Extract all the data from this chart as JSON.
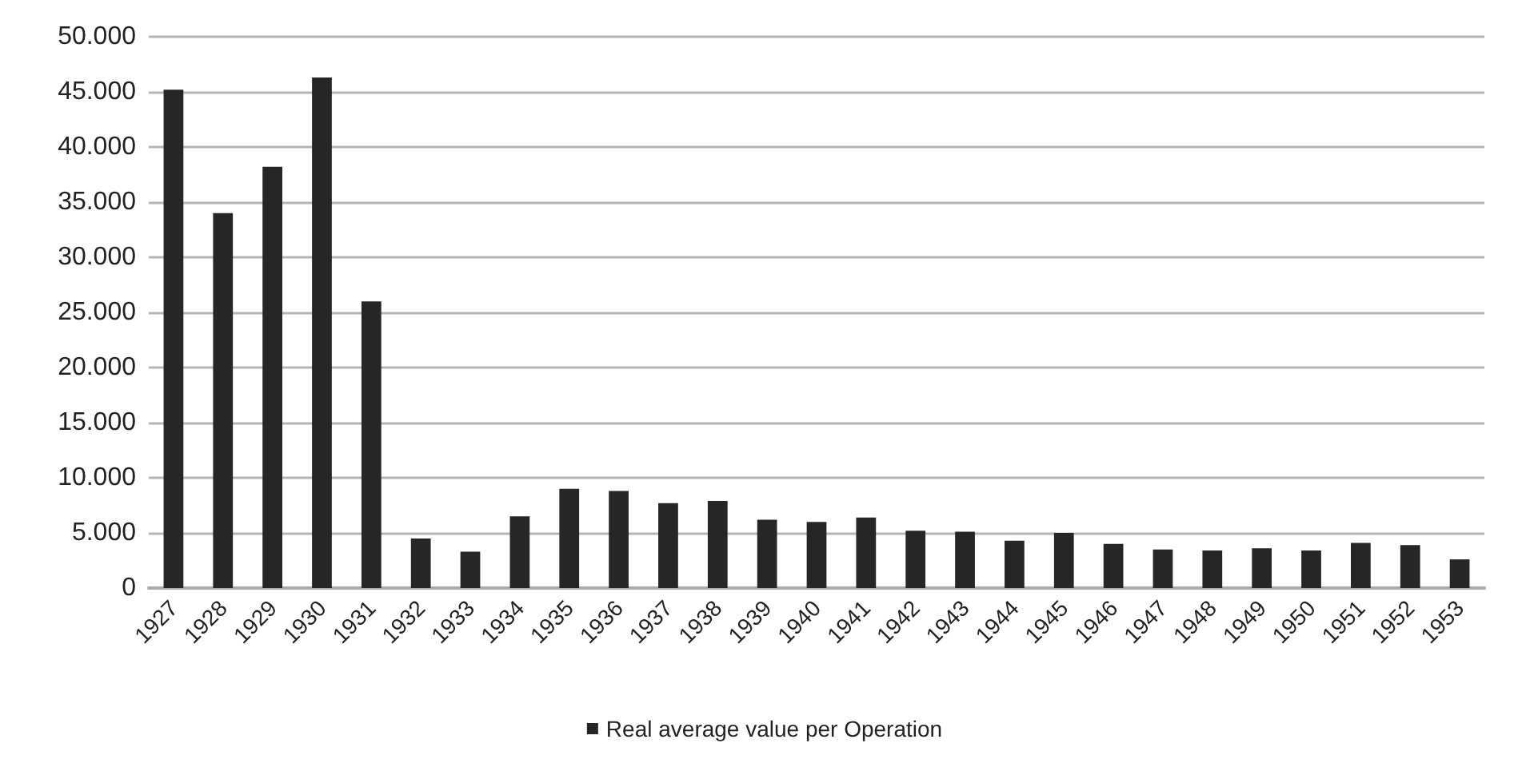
{
  "chart_data": {
    "type": "bar",
    "categories": [
      "1927",
      "1928",
      "1929",
      "1930",
      "1931",
      "1932",
      "1933",
      "1934",
      "1935",
      "1936",
      "1937",
      "1938",
      "1939",
      "1940",
      "1941",
      "1942",
      "1943",
      "1944",
      "1945",
      "1946",
      "1947",
      "1948",
      "1949",
      "1950",
      "1951",
      "1952",
      "1953"
    ],
    "series": [
      {
        "name": "Real average value per Operation",
        "color": "#262626",
        "values": [
          45200,
          34000,
          38200,
          46300,
          26000,
          4500,
          3300,
          6500,
          9000,
          8800,
          7700,
          7900,
          6200,
          6000,
          6400,
          5200,
          5100,
          4300,
          5000,
          4000,
          3500,
          3400,
          3600,
          3400,
          4100,
          3900,
          2600
        ]
      }
    ],
    "ylim": [
      0,
      50000
    ],
    "yticks": [
      0,
      {
        "value": 5000,
        "label": "5.000"
      },
      {
        "value": 10000,
        "label": "10.000"
      },
      {
        "value": 15000,
        "label": "15.000"
      },
      {
        "value": 20000,
        "label": "20.000"
      },
      {
        "value": 25000,
        "label": "25.000"
      },
      {
        "value": 30000,
        "label": "30.000"
      },
      {
        "value": 35000,
        "label": "35.000"
      },
      {
        "value": 40000,
        "label": "40.000"
      },
      {
        "value": 45000,
        "label": "45.000"
      },
      {
        "value": 50000,
        "label": "50.000"
      }
    ],
    "grid": "y",
    "legend": "bottom"
  }
}
